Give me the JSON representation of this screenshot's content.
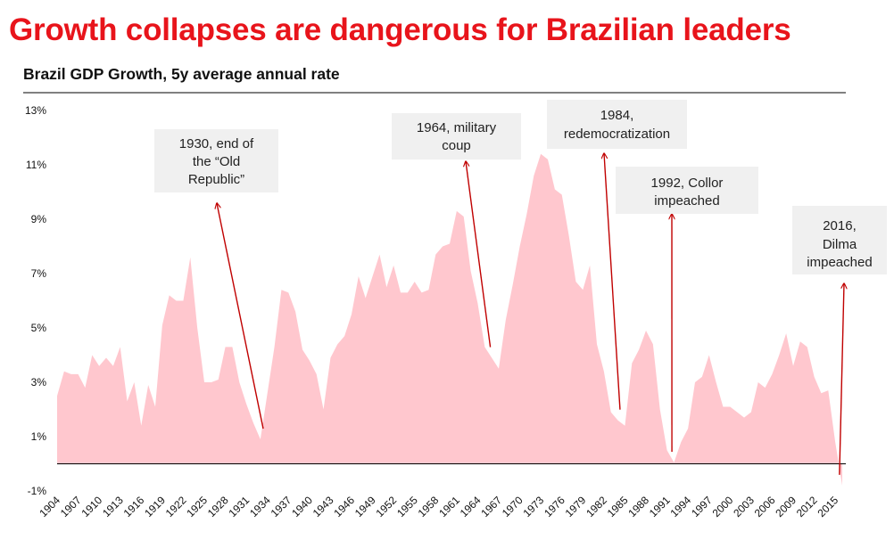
{
  "headline": "Growth collapses are dangerous for Brazilian leaders",
  "chart_data": {
    "type": "area",
    "title": "Brazil GDP Growth, 5y average annual rate",
    "xlabel": "",
    "ylabel": "",
    "ylim": [
      -1,
      13
    ],
    "xlim": [
      1904,
      2016
    ],
    "y_ticks": [
      13,
      11,
      9,
      7,
      5,
      3,
      1,
      -1
    ],
    "y_tick_labels": [
      "13%",
      "11%",
      "9%",
      "7%",
      "5%",
      "3%",
      "1%",
      "-1%"
    ],
    "x_ticks": [
      1904,
      1907,
      1910,
      1913,
      1916,
      1919,
      1922,
      1925,
      1928,
      1931,
      1934,
      1937,
      1940,
      1943,
      1946,
      1949,
      1952,
      1955,
      1958,
      1961,
      1964,
      1967,
      1970,
      1973,
      1976,
      1979,
      1982,
      1985,
      1988,
      1991,
      1994,
      1997,
      2000,
      2003,
      2006,
      2009,
      2012,
      2015
    ],
    "grid": false,
    "colors": {
      "area": "#ffc7ce",
      "arrow": "#c00000",
      "callout_bg": "#f0f0f0",
      "headline": "#e8141b"
    },
    "series": [
      {
        "name": "Brazil GDP Growth, 5y average annual rate",
        "x": [
          1904,
          1905,
          1906,
          1907,
          1908,
          1909,
          1910,
          1911,
          1912,
          1913,
          1914,
          1915,
          1916,
          1917,
          1918,
          1919,
          1920,
          1921,
          1922,
          1923,
          1924,
          1925,
          1926,
          1927,
          1928,
          1929,
          1930,
          1931,
          1932,
          1933,
          1934,
          1935,
          1936,
          1937,
          1938,
          1939,
          1940,
          1941,
          1942,
          1943,
          1944,
          1945,
          1946,
          1947,
          1948,
          1949,
          1950,
          1951,
          1952,
          1953,
          1954,
          1955,
          1956,
          1957,
          1958,
          1959,
          1960,
          1961,
          1962,
          1963,
          1964,
          1965,
          1966,
          1967,
          1968,
          1969,
          1970,
          1971,
          1972,
          1973,
          1974,
          1975,
          1976,
          1977,
          1978,
          1979,
          1980,
          1981,
          1982,
          1983,
          1984,
          1985,
          1986,
          1987,
          1988,
          1989,
          1990,
          1991,
          1992,
          1993,
          1994,
          1995,
          1996,
          1997,
          1998,
          1999,
          2000,
          2001,
          2002,
          2003,
          2004,
          2005,
          2006,
          2007,
          2008,
          2009,
          2010,
          2011,
          2012,
          2013,
          2014,
          2015,
          2016
        ],
        "values": [
          2.5,
          3.4,
          3.3,
          3.3,
          2.8,
          4.0,
          3.6,
          3.9,
          3.6,
          4.3,
          2.3,
          3.0,
          1.4,
          2.9,
          2.1,
          5.1,
          6.2,
          6.0,
          6.0,
          7.6,
          5.0,
          3.0,
          3.0,
          3.1,
          4.3,
          4.3,
          3.0,
          2.2,
          1.5,
          0.9,
          2.6,
          4.3,
          6.4,
          6.3,
          5.6,
          4.2,
          3.8,
          3.3,
          2.0,
          3.9,
          4.4,
          4.7,
          5.5,
          6.9,
          6.1,
          6.9,
          7.7,
          6.5,
          7.3,
          6.3,
          6.3,
          6.7,
          6.3,
          6.4,
          7.7,
          8.0,
          8.1,
          9.3,
          9.1,
          7.1,
          5.9,
          4.3,
          3.9,
          3.5,
          5.3,
          6.6,
          8.0,
          9.2,
          10.6,
          11.4,
          11.2,
          10.1,
          9.9,
          8.4,
          6.7,
          6.4,
          7.3,
          4.4,
          3.4,
          1.9,
          1.6,
          1.4,
          3.7,
          4.2,
          4.9,
          4.4,
          2.0,
          0.5,
          0.05,
          0.8,
          1.3,
          3.0,
          3.2,
          4.0,
          3.0,
          2.1,
          2.1,
          1.9,
          1.7,
          1.9,
          3.0,
          2.8,
          3.3,
          4.0,
          4.8,
          3.6,
          4.5,
          4.3,
          3.2,
          2.6,
          2.7,
          0.8,
          -0.8
        ]
      }
    ],
    "annotations": [
      {
        "lines": [
          "1930, end of",
          "the “Old",
          "Republic”"
        ],
        "event_year": 1933.4
      },
      {
        "lines": [
          "1964, military",
          "coup"
        ],
        "event_year": 1965.8
      },
      {
        "lines": [
          "1984,",
          "redemocratization"
        ],
        "event_year": 1984.3
      },
      {
        "lines": [
          "1992, Collor",
          "impeached"
        ],
        "event_year": 1991.7
      },
      {
        "lines": [
          "2016,",
          "Dilma",
          "impeached"
        ],
        "event_year": 2015.6
      }
    ]
  }
}
